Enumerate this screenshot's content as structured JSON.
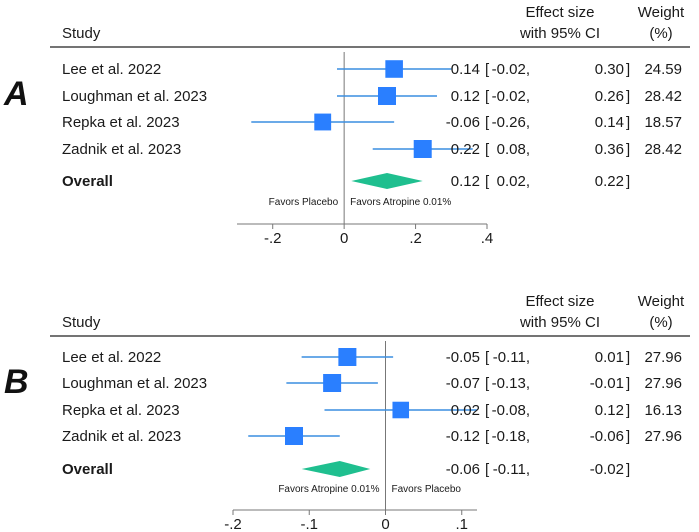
{
  "chart_data": [
    {
      "type": "forest",
      "panel_label": "A",
      "headers": {
        "study": "Study",
        "effect_line1": "Effect size",
        "effect_line2": "with 95% CI",
        "weight_line1": "Weight",
        "weight_line2": "(%)"
      },
      "studies": [
        {
          "name": "Lee et al. 2022",
          "estimate": 0.14,
          "lower": -0.02,
          "upper": 0.3,
          "est_label": "0.14",
          "lo_label": "-0.02",
          "hi_label": "0.30",
          "weight": "24.59"
        },
        {
          "name": "Loughman et al. 2023",
          "estimate": 0.12,
          "lower": -0.02,
          "upper": 0.26,
          "est_label": "0.12",
          "lo_label": "-0.02",
          "hi_label": "0.26",
          "weight": "28.42"
        },
        {
          "name": "Repka et al. 2023",
          "estimate": -0.06,
          "lower": -0.26,
          "upper": 0.14,
          "est_label": "-0.06",
          "lo_label": "-0.26",
          "hi_label": "0.14",
          "weight": "18.57"
        },
        {
          "name": "Zadnik et al. 2023",
          "estimate": 0.22,
          "lower": 0.08,
          "upper": 0.36,
          "est_label": "0.22",
          "lo_label": "0.08",
          "hi_label": "0.36",
          "weight": "28.42"
        }
      ],
      "overall": {
        "name": "Overall",
        "estimate": 0.12,
        "lower": 0.02,
        "upper": 0.22,
        "est_label": "0.12",
        "lo_label": "0.02",
        "hi_label": "0.22"
      },
      "favors_left": "Favors Placebo",
      "favors_right": "Favors Atropine 0.01%",
      "xlim": [
        -0.3,
        0.4
      ],
      "ticks": [
        -0.2,
        0,
        0.2,
        0.4
      ],
      "tick_labels": [
        "-.2",
        "0",
        ".2",
        ".4"
      ]
    },
    {
      "type": "forest",
      "panel_label": "B",
      "headers": {
        "study": "Study",
        "effect_line1": "Effect size",
        "effect_line2": "with 95% CI",
        "weight_line1": "Weight",
        "weight_line2": "(%)"
      },
      "studies": [
        {
          "name": "Lee et al. 2022",
          "estimate": -0.05,
          "lower": -0.11,
          "upper": 0.01,
          "est_label": "-0.05",
          "lo_label": "-0.11",
          "hi_label": "0.01",
          "weight": "27.96"
        },
        {
          "name": "Loughman et al. 2023",
          "estimate": -0.07,
          "lower": -0.13,
          "upper": -0.01,
          "est_label": "-0.07",
          "lo_label": "-0.13",
          "hi_label": "-0.01",
          "weight": "27.96"
        },
        {
          "name": "Repka et al. 2023",
          "estimate": 0.02,
          "lower": -0.08,
          "upper": 0.12,
          "est_label": "0.02",
          "lo_label": "-0.08",
          "hi_label": "0.12",
          "weight": "16.13"
        },
        {
          "name": "Zadnik et al. 2023",
          "estimate": -0.12,
          "lower": -0.18,
          "upper": -0.06,
          "est_label": "-0.12",
          "lo_label": "-0.18",
          "hi_label": "-0.06",
          "weight": "27.96"
        }
      ],
      "overall": {
        "name": "Overall",
        "estimate": -0.06,
        "lower": -0.11,
        "upper": -0.02,
        "est_label": "-0.06",
        "lo_label": "-0.11",
        "hi_label": "-0.02"
      },
      "favors_left": "Favors Atropine 0.01%",
      "favors_right": "Favors Placebo",
      "xlim": [
        -0.2,
        0.12
      ],
      "ticks": [
        -0.2,
        -0.1,
        0,
        0.1
      ],
      "tick_labels": [
        "-.2",
        "-.1",
        "0",
        ".1"
      ]
    }
  ],
  "colors": {
    "marker": "#2a7fff",
    "ci_line": "#3a8de0",
    "diamond": "#1fbf8f",
    "axis": "#777777",
    "text": "#1a1a1a"
  }
}
